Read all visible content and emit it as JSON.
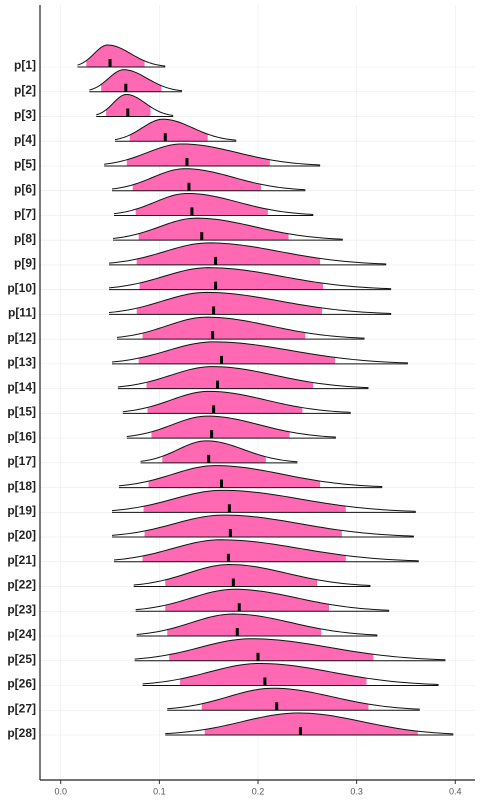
{
  "chart_data": {
    "type": "ridgeline",
    "categories": [
      "p[1]",
      "p[2]",
      "p[3]",
      "p[4]",
      "p[5]",
      "p[6]",
      "p[7]",
      "p[8]",
      "p[9]",
      "p[10]",
      "p[11]",
      "p[12]",
      "p[13]",
      "p[14]",
      "p[15]",
      "p[16]",
      "p[17]",
      "p[18]",
      "p[19]",
      "p[20]",
      "p[21]",
      "p[22]",
      "p[23]",
      "p[24]",
      "p[25]",
      "p[26]",
      "p[27]",
      "p[28]"
    ],
    "values": [
      0.05,
      0.066,
      0.068,
      0.106,
      0.128,
      0.13,
      0.133,
      0.143,
      0.157,
      0.157,
      0.155,
      0.154,
      0.163,
      0.159,
      0.155,
      0.153,
      0.15,
      0.163,
      0.171,
      0.172,
      0.17,
      0.175,
      0.181,
      0.179,
      0.2,
      0.207,
      0.219,
      0.243
    ],
    "inner_low": [
      0.026,
      0.041,
      0.046,
      0.07,
      0.067,
      0.073,
      0.076,
      0.079,
      0.077,
      0.08,
      0.077,
      0.083,
      0.079,
      0.087,
      0.088,
      0.092,
      0.103,
      0.089,
      0.084,
      0.085,
      0.083,
      0.106,
      0.106,
      0.108,
      0.11,
      0.121,
      0.143,
      0.146
    ],
    "inner_high": [
      0.085,
      0.102,
      0.091,
      0.149,
      0.212,
      0.203,
      0.21,
      0.231,
      0.263,
      0.266,
      0.265,
      0.248,
      0.278,
      0.256,
      0.245,
      0.232,
      0.208,
      0.263,
      0.289,
      0.285,
      0.289,
      0.26,
      0.272,
      0.264,
      0.317,
      0.31,
      0.312,
      0.362
    ],
    "outer_low": [
      0.017,
      0.029,
      0.036,
      0.055,
      0.044,
      0.052,
      0.054,
      0.053,
      0.049,
      0.049,
      0.049,
      0.057,
      0.052,
      0.058,
      0.063,
      0.067,
      0.081,
      0.059,
      0.052,
      0.052,
      0.054,
      0.074,
      0.076,
      0.077,
      0.075,
      0.083,
      0.108,
      0.106
    ],
    "outer_high": [
      0.106,
      0.123,
      0.114,
      0.178,
      0.263,
      0.248,
      0.256,
      0.286,
      0.33,
      0.335,
      0.335,
      0.308,
      0.352,
      0.312,
      0.294,
      0.279,
      0.24,
      0.326,
      0.36,
      0.358,
      0.363,
      0.314,
      0.333,
      0.321,
      0.39,
      0.383,
      0.364,
      0.398
    ],
    "color": "#ff69b4",
    "xlim": [
      -0.021,
      0.42
    ],
    "xticks": [
      {
        "value": 0,
        "label": "0.0"
      },
      0.1,
      0.2,
      0.3,
      0.4
    ],
    "grid": true
  }
}
